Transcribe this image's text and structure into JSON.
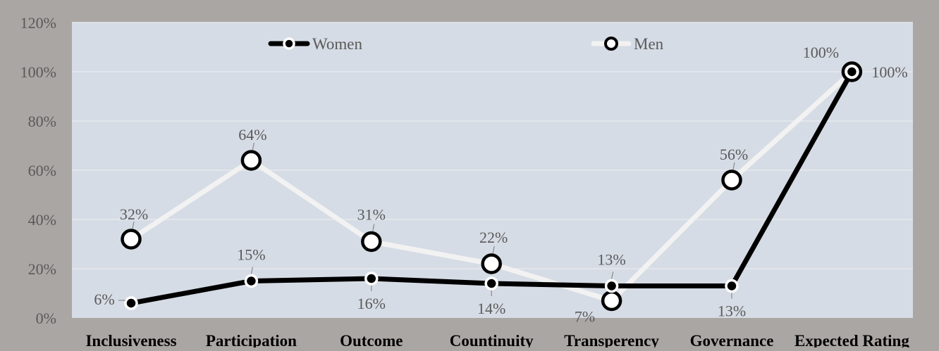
{
  "chart_data": {
    "type": "line",
    "title": "",
    "xlabel": "",
    "ylabel": "",
    "categories": [
      "Inclusiveness",
      "Participation",
      "Outcome",
      "Countinuity",
      "Transperency",
      "Governance",
      "Expected Rating"
    ],
    "ylim": [
      0,
      1.2
    ],
    "yticks": [
      "0%",
      "20%",
      "40%",
      "60%",
      "80%",
      "100%",
      "120%"
    ],
    "grid": true,
    "legend_position": "top",
    "series": [
      {
        "name": "Women",
        "values": [
          0.06,
          0.15,
          0.16,
          0.14,
          0.13,
          0.13,
          1.0
        ],
        "labels": [
          "6%",
          "15%",
          "16%",
          "14%",
          "13%",
          "13%",
          ""
        ],
        "color": "#000000",
        "marker_fill": "#000000",
        "marker_edge": "#ffffff"
      },
      {
        "name": "Men",
        "values": [
          0.32,
          0.64,
          0.31,
          0.22,
          0.07,
          0.56,
          1.0
        ],
        "labels": [
          "32%",
          "64%",
          "31%",
          "22%",
          "7%",
          "56%",
          "100%"
        ],
        "color": "#f2f2f2",
        "marker_fill": "#ffffff",
        "marker_edge": "#000000"
      }
    ],
    "extra_label": "100%",
    "colors": {
      "outer_background": "#aaa6a3",
      "plot_background": "#d6dce5",
      "gridline": "#e6e9ef",
      "text": "#595959"
    }
  }
}
